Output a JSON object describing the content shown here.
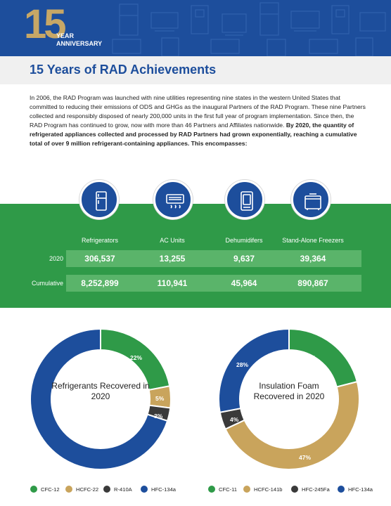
{
  "banner": {
    "number": "15",
    "line1": "YEAR",
    "line2": "ANNIVERSARY"
  },
  "title": "15 Years of RAD Achievements",
  "intro": {
    "normal": "In 2006, the RAD Program was launched with nine utilities representing nine states in the western United States that committed to reducing their emissions of ODS and GHGs as the inaugural Partners of the RAD Program. These nine Partners collected and responsibly disposed of nearly 200,000 units in the first full year of program implementation. Since then, the RAD Program has continued to grow, now with more than 46 Partners and Affiliates nationwide. ",
    "bold": "By 2020, the quantity of refrigerated appliances collected and processed by RAD Partners had grown exponentially, reaching a cumulative total of over 9 million refrigerant-containing appliances. This encompasses:"
  },
  "stats": {
    "columns": [
      {
        "label": "Refrigerators",
        "icon": "refrigerator-icon"
      },
      {
        "label": "AC Units",
        "icon": "ac-unit-icon"
      },
      {
        "label": "Dehumidifers",
        "icon": "dehumidifier-icon"
      },
      {
        "label": "Stand-Alone Freezers",
        "icon": "freezer-icon"
      }
    ],
    "rows": [
      {
        "label": "2020",
        "values": [
          "306,537",
          "13,255",
          "9,637",
          "39,364"
        ]
      },
      {
        "label": "Cumulative",
        "values": [
          "8,252,899",
          "110,941",
          "45,964",
          "890,867"
        ]
      }
    ]
  },
  "colors": {
    "blue": "#1d4e9c",
    "green": "#2f9a48",
    "gold": "#c9a45c",
    "dark": "#3a3a3a"
  },
  "chart_data": [
    {
      "type": "pie",
      "title": "Refrigerants Recovered in 2020",
      "categories": [
        "CFC-12",
        "HCFC-22",
        "R-410A",
        "HFC-134a"
      ],
      "values": [
        22,
        5,
        3,
        70
      ],
      "labels": [
        "22%",
        "5%",
        "3%",
        "70%"
      ],
      "colors": [
        "#2f9a48",
        "#c9a45c",
        "#3a3a3a",
        "#1d4e9c"
      ],
      "legend": "bottom"
    },
    {
      "type": "pie",
      "title": "Insulation Foam Recovered in 2020",
      "categories": [
        "CFC-11",
        "HCFC-141b",
        "HFC-245Fa",
        "HFC-134a"
      ],
      "values": [
        21,
        47,
        4,
        28
      ],
      "labels": [
        "21%",
        "47%",
        "4%",
        "28%"
      ],
      "colors": [
        "#2f9a48",
        "#c9a45c",
        "#3a3a3a",
        "#1d4e9c"
      ],
      "legend": "bottom"
    }
  ]
}
